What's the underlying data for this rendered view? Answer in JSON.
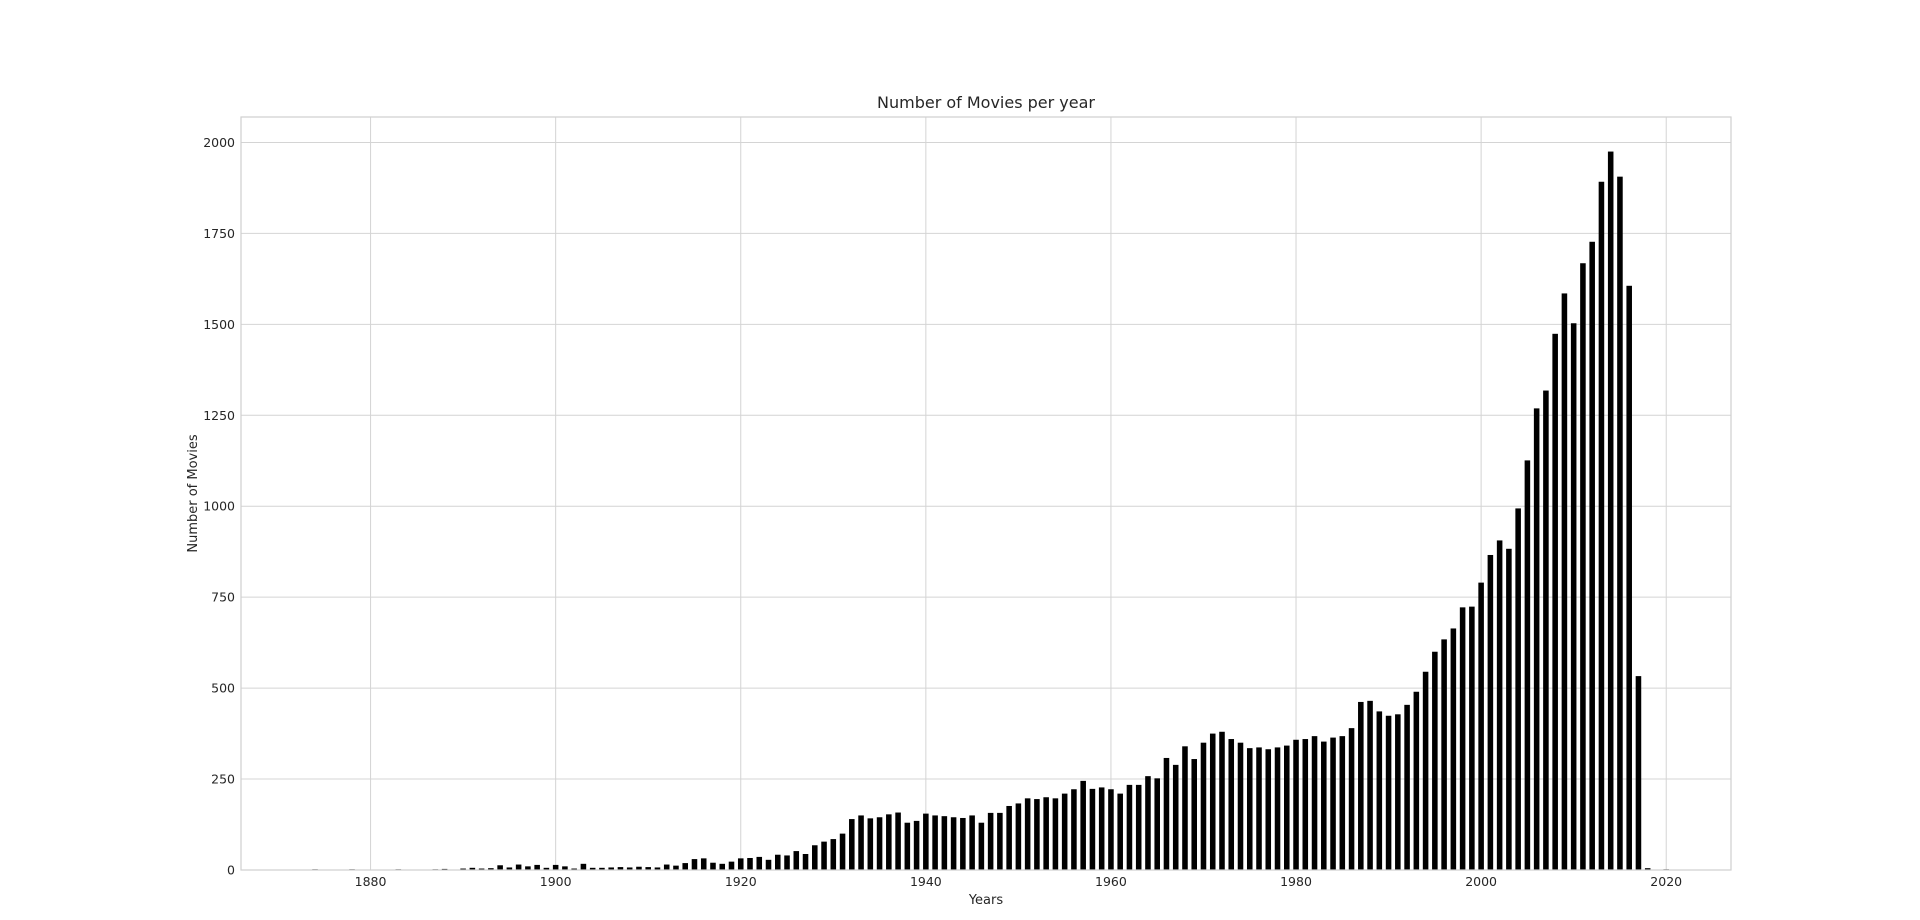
{
  "chart_data": {
    "type": "bar",
    "title": "Number of Movies per year",
    "xlabel": "Years",
    "ylabel": "Number of Movies",
    "xlim": [
      1866,
      2027
    ],
    "ylim": [
      0,
      2070
    ],
    "x_ticks": [
      1880,
      1900,
      1920,
      1940,
      1960,
      1980,
      2000,
      2020
    ],
    "y_ticks": [
      0,
      250,
      500,
      750,
      1000,
      1250,
      1500,
      1750,
      2000
    ],
    "grid": true,
    "bar_color": "#000000",
    "x": [
      1874,
      1878,
      1883,
      1887,
      1888,
      1890,
      1891,
      1892,
      1893,
      1894,
      1895,
      1896,
      1897,
      1898,
      1899,
      1900,
      1901,
      1902,
      1903,
      1904,
      1905,
      1906,
      1907,
      1908,
      1909,
      1910,
      1911,
      1912,
      1913,
      1914,
      1915,
      1916,
      1917,
      1918,
      1919,
      1920,
      1921,
      1922,
      1923,
      1924,
      1925,
      1926,
      1927,
      1928,
      1929,
      1930,
      1931,
      1932,
      1933,
      1934,
      1935,
      1936,
      1937,
      1938,
      1939,
      1940,
      1941,
      1942,
      1943,
      1944,
      1945,
      1946,
      1947,
      1948,
      1949,
      1950,
      1951,
      1952,
      1953,
      1954,
      1955,
      1956,
      1957,
      1958,
      1959,
      1960,
      1961,
      1962,
      1963,
      1964,
      1965,
      1966,
      1967,
      1968,
      1969,
      1970,
      1971,
      1972,
      1973,
      1974,
      1975,
      1976,
      1977,
      1978,
      1979,
      1980,
      1981,
      1982,
      1983,
      1984,
      1985,
      1986,
      1987,
      1988,
      1989,
      1990,
      1991,
      1992,
      1993,
      1994,
      1995,
      1996,
      1997,
      1998,
      1999,
      2000,
      2001,
      2002,
      2003,
      2004,
      2005,
      2006,
      2007,
      2008,
      2009,
      2010,
      2011,
      2012,
      2013,
      2014,
      2015,
      2016,
      2017,
      2018,
      2020
    ],
    "values": [
      2,
      2,
      2,
      2,
      3,
      4,
      6,
      4,
      5,
      13,
      7,
      15,
      10,
      14,
      6,
      14,
      10,
      4,
      17,
      6,
      6,
      7,
      8,
      7,
      9,
      8,
      7,
      15,
      12,
      19,
      30,
      32,
      20,
      17,
      23,
      32,
      33,
      36,
      28,
      42,
      40,
      52,
      44,
      68,
      78,
      85,
      100,
      140,
      150,
      142,
      145,
      153,
      158,
      130,
      135,
      155,
      150,
      148,
      145,
      143,
      150,
      130,
      157,
      157,
      176,
      183,
      197,
      195,
      200,
      197,
      210,
      222,
      245,
      223,
      227,
      222,
      210,
      234,
      234,
      258,
      252,
      308,
      289,
      340,
      305,
      350,
      375,
      380,
      360,
      350,
      335,
      337,
      332,
      337,
      342,
      358,
      360,
      368,
      353,
      364,
      368,
      390,
      462,
      465,
      436,
      424,
      428,
      454,
      490,
      545,
      600,
      634,
      664,
      722,
      724,
      790,
      866,
      906,
      883,
      994,
      1126,
      1269,
      1318,
      1474,
      1585,
      1503,
      1668,
      1727,
      1892,
      1975,
      1906,
      1606,
      533,
      5,
      2
    ]
  }
}
